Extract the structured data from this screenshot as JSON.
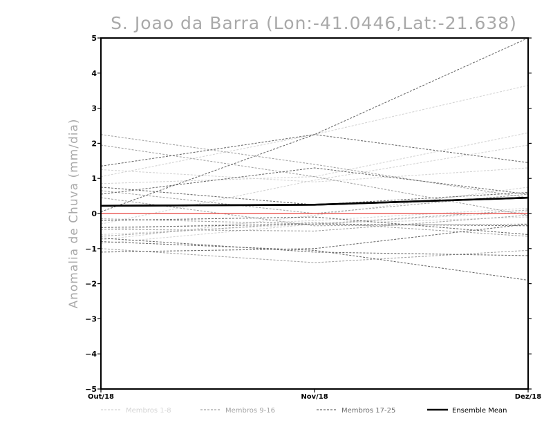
{
  "chart_data": {
    "type": "line",
    "title": "S. Joao da Barra (Lon:-41.0446,Lat:-21.638)",
    "xlabel": "",
    "ylabel": "Anomalia de Chuva (mm/dia)",
    "categories": [
      "Out/18",
      "Nov/18",
      "Dez/18"
    ],
    "ylim": [
      -5,
      5
    ],
    "yticks": [
      -5,
      -4,
      -3,
      -2,
      -1,
      0,
      1,
      2,
      3,
      4,
      5
    ],
    "zero_line_color": "#e8413c",
    "groups": [
      {
        "name": "Membros 1-8",
        "color": "#d4d4d4",
        "series": [
          [
            1.25,
            0.9,
            1.3
          ],
          [
            1.05,
            2.25,
            3.65
          ],
          [
            0.85,
            1.05,
            2.3
          ],
          [
            -0.3,
            0.95,
            1.95
          ],
          [
            -0.6,
            -0.3,
            -0.1
          ],
          [
            -0.85,
            -0.3,
            0.05
          ],
          [
            -0.75,
            -0.05,
            0.75
          ],
          [
            -0.45,
            -0.2,
            0.15
          ]
        ]
      },
      {
        "name": "Membros 9-16",
        "color": "#a4a4a4",
        "series": [
          [
            2.25,
            1.4,
            0.45
          ],
          [
            1.95,
            1.05,
            -0.05
          ],
          [
            0.45,
            -0.35,
            -0.3
          ],
          [
            -0.15,
            -0.3,
            0.1
          ],
          [
            -0.45,
            -0.5,
            -0.05
          ],
          [
            -0.65,
            -0.25,
            -0.65
          ],
          [
            -1.0,
            -1.4,
            -1.05
          ],
          [
            0.65,
            0.0,
            0.55
          ]
        ]
      },
      {
        "name": "Membros 17-25",
        "color": "#6c6c6c",
        "series": [
          [
            0.05,
            2.25,
            5.0
          ],
          [
            1.35,
            2.25,
            1.45
          ],
          [
            0.75,
            0.25,
            0.6
          ],
          [
            0.55,
            1.3,
            0.55
          ],
          [
            -0.2,
            -0.1,
            -0.6
          ],
          [
            -0.4,
            -0.3,
            -0.35
          ],
          [
            -0.7,
            -1.1,
            -1.2
          ],
          [
            -0.8,
            -1.05,
            -1.9
          ],
          [
            -1.1,
            -1.0,
            -0.3
          ]
        ]
      },
      {
        "name": "Ensemble Mean",
        "color": "#000000",
        "series": [
          [
            0.22,
            0.25,
            0.45
          ]
        ]
      }
    ]
  }
}
